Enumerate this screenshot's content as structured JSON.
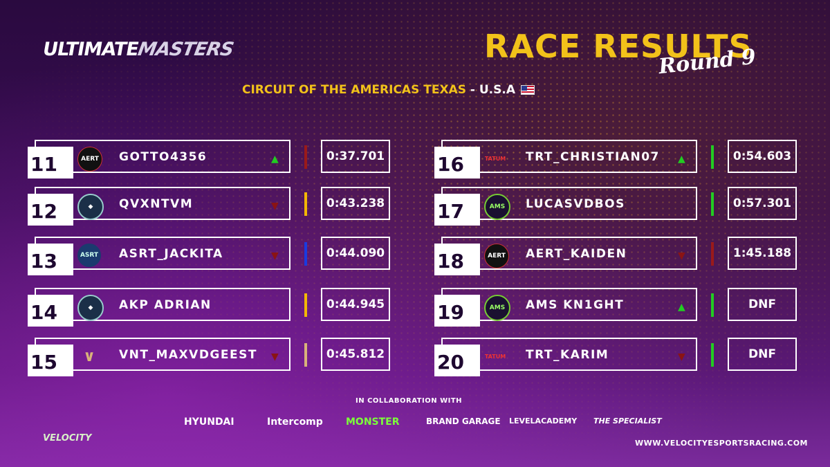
{
  "header": {
    "logo_left": "ULTIMATE",
    "logo_right": "MASTERS",
    "title": "RACE RESULTS",
    "subtitle": "Round 9",
    "venue_main": "CIRCUIT OF THE AMERICAS TEXAS",
    "venue_country": " - U.S.A"
  },
  "results": [
    {
      "pos": "11",
      "team": "AERT",
      "name": "GOTTO4356",
      "arrow": "up",
      "bar": "#9a1a1a",
      "time": "0:37.701"
    },
    {
      "pos": "12",
      "team": "lion",
      "name": "QVXNTVM",
      "arrow": "down",
      "bar": "#f2b705",
      "time": "0:43.238"
    },
    {
      "pos": "13",
      "team": "ASRT",
      "name": "ASRT_JACKITA",
      "arrow": "down",
      "bar": "#1a3be0",
      "time": "0:44.090"
    },
    {
      "pos": "14",
      "team": "lion",
      "name": "AKP ADRIAN",
      "arrow": "none",
      "bar": "#f2b705",
      "time": "0:44.945"
    },
    {
      "pos": "15",
      "team": "bull",
      "name": "VNT_MAXVDGEEST",
      "arrow": "down",
      "bar": "#d9b37a",
      "time": "0:45.812"
    },
    {
      "pos": "16",
      "team": "TATUM",
      "name": "TRT_CHRISTIAN07",
      "arrow": "up",
      "bar": "#22cc22",
      "time": "0:54.603"
    },
    {
      "pos": "17",
      "team": "AMS",
      "name": "LUCASVDBOS",
      "arrow": "none",
      "bar": "#22cc22",
      "time": "0:57.301"
    },
    {
      "pos": "18",
      "team": "AERT",
      "name": "AERT_KAIDEN",
      "arrow": "down",
      "bar": "#9a1a1a",
      "time": "1:45.188"
    },
    {
      "pos": "19",
      "team": "AMS",
      "name": "AMS KN1GHT",
      "arrow": "up",
      "bar": "#22cc22",
      "time": "DNF"
    },
    {
      "pos": "20",
      "team": "TATUM",
      "name": "TRT_KARIM",
      "arrow": "down",
      "bar": "#22cc22",
      "time": "DNF"
    }
  ],
  "footer": {
    "collab": "IN COLLABORATION WITH",
    "sponsors": [
      "HYUNDAI",
      "Intercomp",
      "MONSTER",
      "BRAND GARAGE",
      "LEVELACADEMY",
      "THE SPECIALIST"
    ],
    "velocity": "VELOCITY",
    "url": "WWW.VELOCITYESPORTSRACING.COM"
  }
}
